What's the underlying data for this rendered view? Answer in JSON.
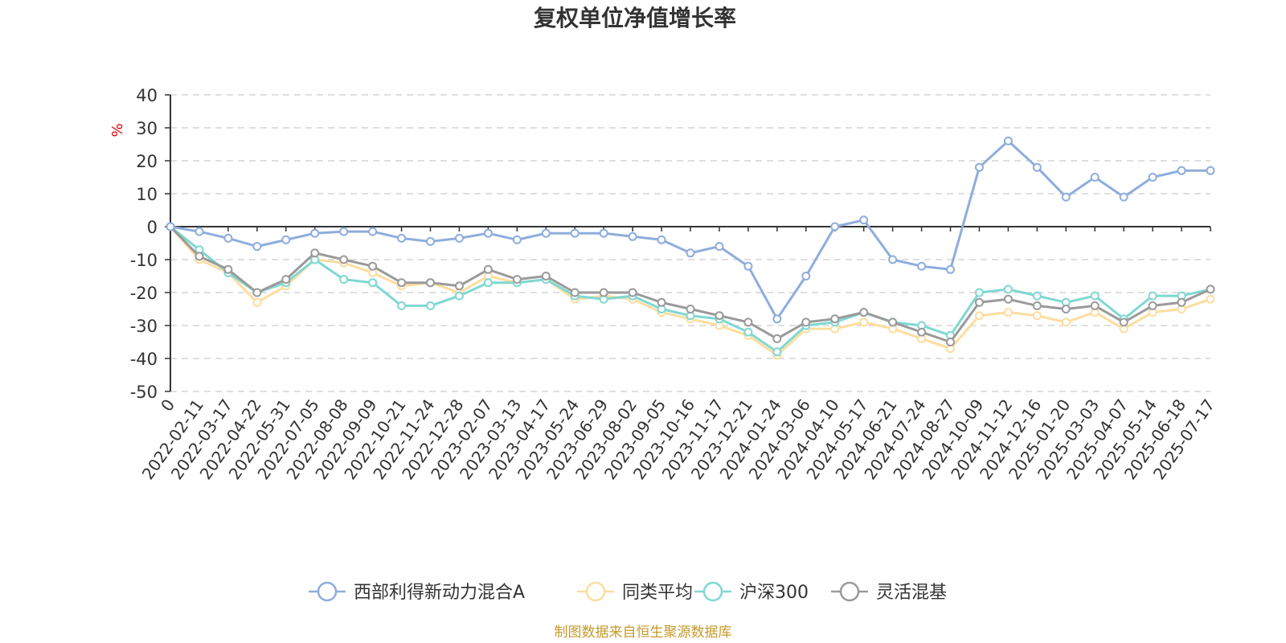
{
  "chart_data": {
    "type": "line",
    "title": "复权单位净值增长率",
    "ylabel": "%",
    "ylim": [
      -50,
      40
    ],
    "yticks": [
      40,
      30,
      20,
      10,
      0,
      -10,
      -20,
      -30,
      -40,
      -50
    ],
    "grid": true,
    "legend_position": "bottom",
    "x_labels": [
      "0",
      "2022-02-11",
      "2022-03-17",
      "2022-04-22",
      "2022-05-31",
      "2022-07-05",
      "2022-08-08",
      "2022-09-09",
      "2022-10-21",
      "2022-11-24",
      "2022-12-28",
      "2023-02-07",
      "2023-03-13",
      "2023-04-17",
      "2023-05-24",
      "2023-06-29",
      "2023-08-02",
      "2023-09-05",
      "2023-10-16",
      "2023-11-17",
      "2023-12-21",
      "2024-01-24",
      "2024-03-06",
      "2024-04-10",
      "2024-05-17",
      "2024-06-21",
      "2024-07-24",
      "2024-08-27",
      "2024-10-09",
      "2024-11-12",
      "2024-12-16",
      "2025-01-20",
      "2025-03-03",
      "2025-04-07",
      "2025-05-14",
      "2025-06-18",
      "2025-07-17"
    ],
    "series": [
      {
        "name": "西部利得新动力混合A",
        "color": "#8eaddc",
        "values": [
          0,
          -1.5,
          -3.5,
          -6,
          -4,
          -2,
          -1.5,
          -1.5,
          -3.5,
          -4.5,
          -3.5,
          -2,
          -4,
          -2,
          -2,
          -2,
          -3,
          -4,
          -8,
          -6,
          -12,
          -28,
          -15,
          0,
          2,
          -10,
          -12,
          -13,
          18,
          26,
          18,
          9,
          15,
          9,
          15,
          17,
          17
        ]
      },
      {
        "name": "同类平均",
        "color": "#fddd9f",
        "values": [
          0,
          -10,
          -14,
          -23,
          -18,
          -10,
          -11,
          -14,
          -18,
          -17,
          -20,
          -15,
          -17,
          -16,
          -22,
          -21,
          -22,
          -26,
          -28,
          -30,
          -33,
          -39,
          -31,
          -31,
          -29,
          -31,
          -34,
          -37,
          -27,
          -26,
          -27,
          -29,
          -26,
          -31,
          -26,
          -25,
          -22
        ]
      },
      {
        "name": "沪深300",
        "color": "#7fd8d2",
        "values": [
          0,
          -7,
          -14,
          -20,
          -17,
          -10,
          -16,
          -17,
          -24,
          -24,
          -21,
          -17,
          -17,
          -16,
          -21,
          -22,
          -21,
          -25,
          -27,
          -28,
          -32,
          -38,
          -30,
          -29,
          -26,
          -29,
          -30,
          -33,
          -20,
          -19,
          -21,
          -23,
          -21,
          -28,
          -21,
          -21,
          -19
        ]
      },
      {
        "name": "灵活混基",
        "color": "#9a9a9a",
        "values": [
          0,
          -9,
          -13,
          -20,
          -16,
          -8,
          -10,
          -12,
          -17,
          -17,
          -18,
          -13,
          -16,
          -15,
          -20,
          -20,
          -20,
          -23,
          -25,
          -27,
          -29,
          -34,
          -29,
          -28,
          -26,
          -29,
          -32,
          -35,
          -23,
          -22,
          -24,
          -25,
          -24,
          -29,
          -24,
          -23,
          -19
        ]
      }
    ]
  },
  "source_note": "制图数据来自恒生聚源数据库",
  "colors": {
    "title": "#333333",
    "unit": "#dd0000",
    "source": "#c49a2c",
    "axis": "#333333",
    "grid": "#cccccc"
  }
}
